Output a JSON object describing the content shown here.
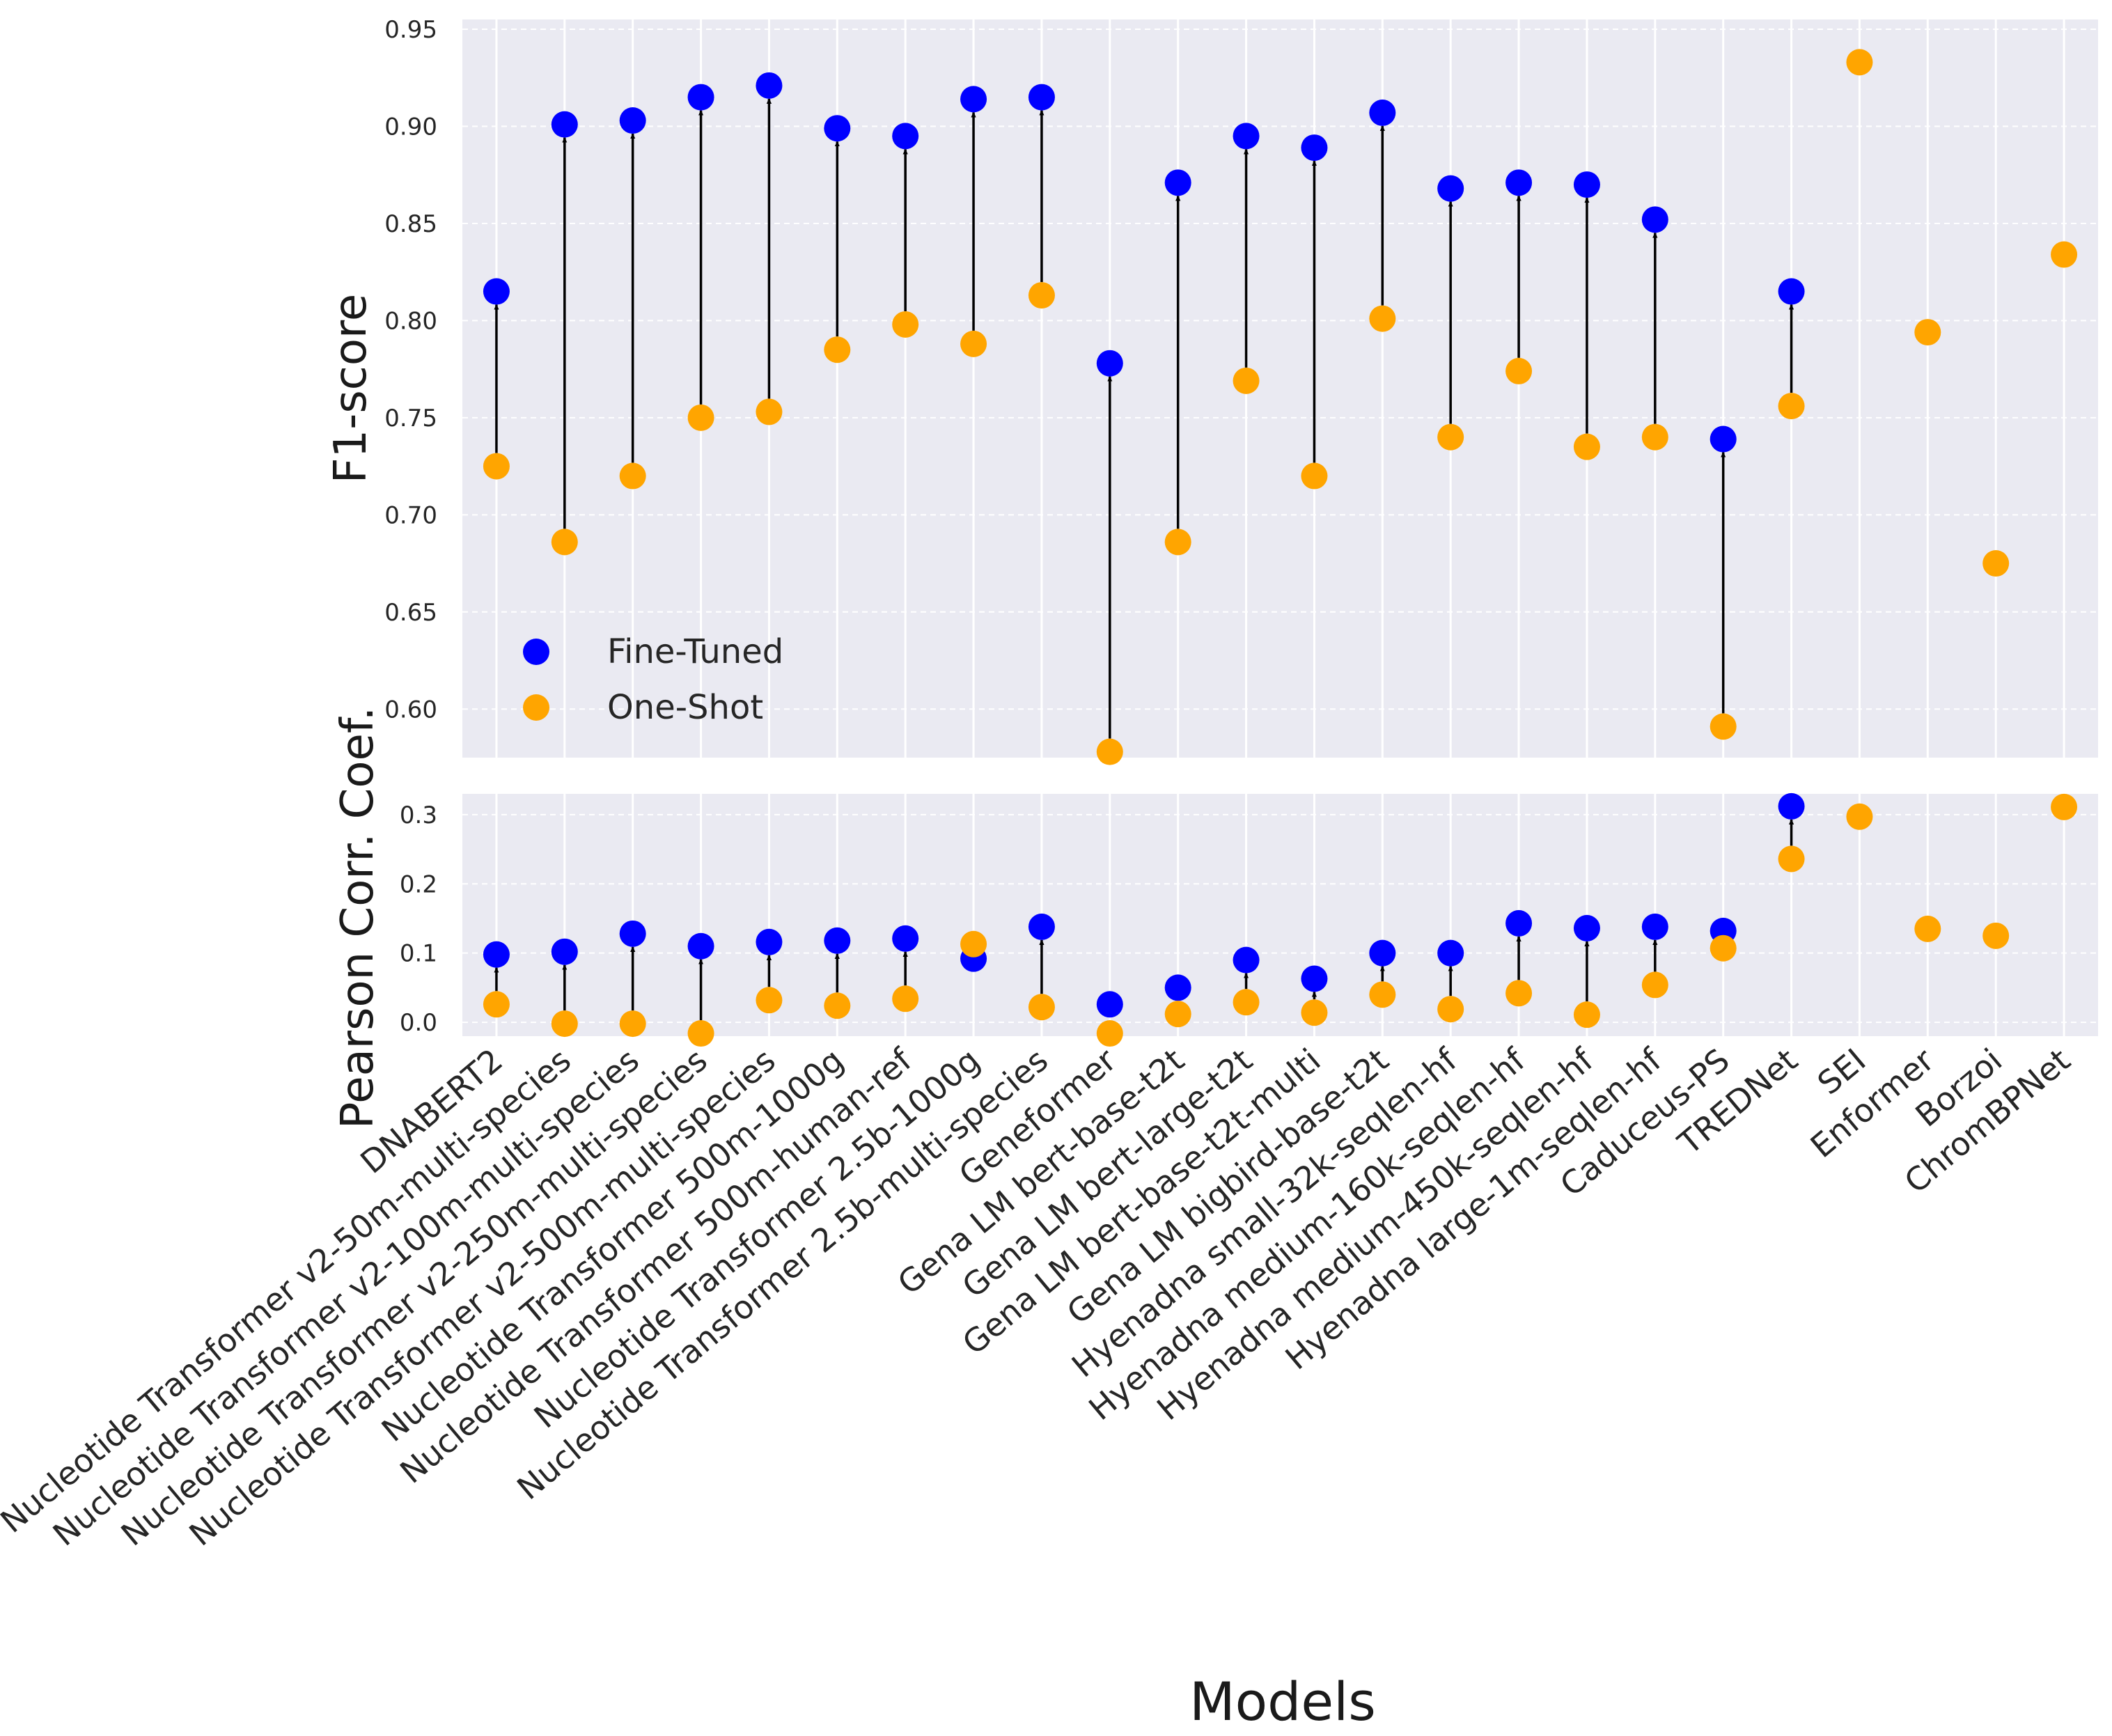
{
  "chart_data": [
    {
      "type": "scatter",
      "panel": "top",
      "ylabel": "F1-score",
      "ylim": [
        0.575,
        0.955
      ],
      "yticks": [
        "0.60",
        "0.65",
        "0.70",
        "0.75",
        "0.80",
        "0.85",
        "0.90",
        "0.95"
      ],
      "grid": true,
      "legend": {
        "placement": "bottom-left",
        "entries": [
          "Fine-Tuned",
          "One-Shot"
        ]
      },
      "series": [
        {
          "name": "Fine-Tuned",
          "color": "#0000ff",
          "values": [
            0.815,
            0.901,
            0.903,
            0.915,
            0.921,
            0.899,
            0.895,
            0.914,
            0.915,
            0.778,
            0.871,
            0.895,
            0.889,
            0.907,
            0.868,
            0.871,
            0.87,
            0.852,
            0.739,
            0.815,
            null,
            null,
            null,
            null
          ]
        },
        {
          "name": "One-Shot",
          "color": "#ffa500",
          "values": [
            0.725,
            0.686,
            0.72,
            0.75,
            0.753,
            0.785,
            0.798,
            0.788,
            0.813,
            0.578,
            0.686,
            0.769,
            0.72,
            0.801,
            0.74,
            0.774,
            0.735,
            0.74,
            0.591,
            0.756,
            0.933,
            0.794,
            0.675,
            0.834
          ]
        }
      ]
    },
    {
      "type": "scatter",
      "panel": "bottom",
      "ylabel": "Pearson Corr. Coef.",
      "ylim": [
        -0.02,
        0.33
      ],
      "yticks": [
        "0.0",
        "0.1",
        "0.2",
        "0.3"
      ],
      "grid": true,
      "series": [
        {
          "name": "Fine-Tuned",
          "color": "#0000ff",
          "values": [
            0.098,
            0.102,
            0.128,
            0.11,
            0.116,
            0.118,
            0.121,
            0.092,
            0.138,
            0.026,
            0.05,
            0.09,
            0.063,
            0.1,
            0.1,
            0.143,
            0.136,
            0.138,
            0.132,
            0.312,
            null,
            null,
            null,
            null
          ]
        },
        {
          "name": "One-Shot",
          "color": "#ffa500",
          "values": [
            0.026,
            -0.002,
            -0.002,
            -0.016,
            0.032,
            0.024,
            0.034,
            0.113,
            0.022,
            -0.016,
            0.012,
            0.029,
            0.014,
            0.04,
            0.019,
            0.042,
            0.011,
            0.054,
            0.107,
            0.236,
            0.297,
            0.135,
            0.125,
            0.311
          ]
        }
      ]
    }
  ],
  "x_axis": {
    "xlabel": "Models",
    "categories": [
      "DNABERT2",
      "Nucleotide Transformer v2-50m-multi-species",
      "Nucleotide Transformer v2-100m-multi-species",
      "Nucleotide Transformer v2-250m-multi-species",
      "Nucleotide Transformer v2-500m-multi-species",
      "Nucleotide Transformer 500m-1000g",
      "Nucleotide Transformer 500m-human-ref",
      "Nucleotide Transformer 2.5b-1000g",
      "Nucleotide Transformer 2.5b-multi-species",
      "Geneformer",
      "Gena LM bert-base-t2t",
      "Gena LM bert-large-t2t",
      "Gena LM bert-base-t2t-multi",
      "Gena LM bigbird-base-t2t",
      "Hyenadna small-32k-seqlen-hf",
      "Hyenadna medium-160k-seqlen-hf",
      "Hyenadna medium-450k-seqlen-hf",
      "Hyenadna large-1m-seqlen-hf",
      "Caduceus-PS",
      "TREDNet",
      "SEI",
      "Enformer",
      "Borzoi",
      "ChromBPNet"
    ]
  }
}
